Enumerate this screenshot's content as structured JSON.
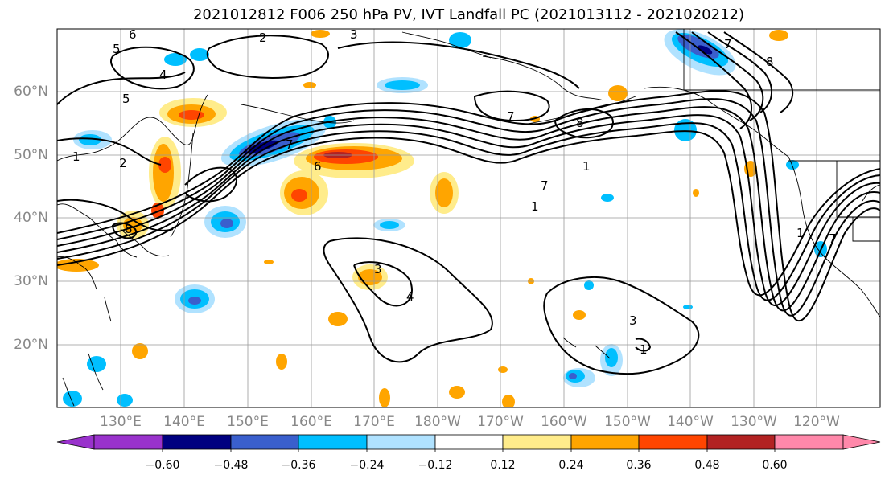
{
  "title": "2021012812 F006 250 hPa PV, IVT Landfall PC (2021013112 - 2021020212)",
  "lat_labels": [
    "60°N",
    "50°N",
    "40°N",
    "30°N",
    "20°N"
  ],
  "lon_labels": [
    "130°E",
    "140°E",
    "150°E",
    "160°E",
    "170°E",
    "180°W",
    "170°W",
    "160°W",
    "150°W",
    "140°W",
    "130°W",
    "120°W"
  ],
  "colorbar": {
    "labels": [
      "-0.60",
      "-0.48",
      "-0.36",
      "-0.24",
      "-0.12",
      "0.12",
      "0.24",
      "0.36",
      "0.48",
      "0.60"
    ],
    "colors": [
      "#9932cc",
      "#000080",
      "#3a5fcd",
      "#00bfff",
      "#b0e2ff",
      "#ffffff",
      "#ffec8b",
      "#ffa500",
      "#ff4500",
      "#b22222",
      "#ff88aa"
    ]
  },
  "contour_labels": [
    "6",
    "5",
    "4",
    "5",
    "2",
    "3",
    "1",
    "2",
    "7",
    "6",
    "8",
    "7",
    "8",
    "1",
    "7",
    "1",
    "3",
    "4",
    "3",
    "1",
    "7",
    "8",
    "7",
    "1"
  ]
}
